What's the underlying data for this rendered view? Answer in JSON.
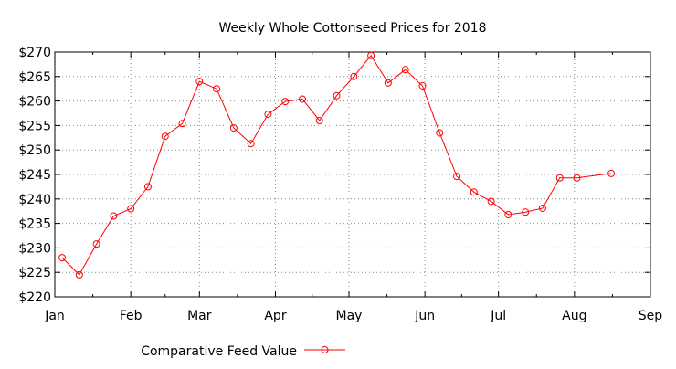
{
  "chart_data": {
    "type": "line",
    "title": "Weekly Whole Cottonseed Prices for 2018",
    "xlabel": "",
    "ylabel": "",
    "xlim": [
      "2018-01-01",
      "2018-09-01"
    ],
    "ylim": [
      220,
      270
    ],
    "grid": true,
    "legend_placement": "bottom",
    "x_tick_labels": [
      "Jan",
      "Feb",
      "Mar",
      "Apr",
      "May",
      "Jun",
      "Jul",
      "Aug",
      "Sep"
    ],
    "x_tick_dates": [
      "2018-01-01",
      "2018-02-01",
      "2018-03-01",
      "2018-04-01",
      "2018-05-01",
      "2018-06-01",
      "2018-07-01",
      "2018-08-01",
      "2018-09-01"
    ],
    "y_ticks": [
      220,
      225,
      230,
      235,
      240,
      245,
      250,
      255,
      260,
      265,
      270
    ],
    "y_tick_labels": [
      "$220",
      "$225",
      "$230",
      "$235",
      "$240",
      "$245",
      "$250",
      "$255",
      "$260",
      "$265",
      "$270"
    ],
    "series": [
      {
        "name": "Comparative Feed Value",
        "color": "#ff0000",
        "marker": "circle",
        "x": [
          "2018-01-04",
          "2018-01-11",
          "2018-01-18",
          "2018-01-25",
          "2018-02-01",
          "2018-02-08",
          "2018-02-15",
          "2018-02-22",
          "2018-03-01",
          "2018-03-08",
          "2018-03-15",
          "2018-03-22",
          "2018-03-29",
          "2018-04-05",
          "2018-04-12",
          "2018-04-19",
          "2018-04-26",
          "2018-05-03",
          "2018-05-10",
          "2018-05-17",
          "2018-05-24",
          "2018-05-31",
          "2018-06-07",
          "2018-06-14",
          "2018-06-21",
          "2018-06-28",
          "2018-07-05",
          "2018-07-12",
          "2018-07-19",
          "2018-07-26",
          "2018-08-02",
          "2018-08-16"
        ],
        "values": [
          228,
          224.5,
          230.8,
          236.5,
          238,
          242.5,
          252.8,
          255.4,
          264,
          262.5,
          254.5,
          251.3,
          257.3,
          259.9,
          260.4,
          256,
          261.1,
          265,
          269.3,
          263.7,
          266.4,
          263.1,
          253.5,
          244.6,
          241.4,
          239.5,
          236.8,
          237.3,
          238.1,
          244.3,
          244.3,
          245.2
        ]
      }
    ]
  }
}
